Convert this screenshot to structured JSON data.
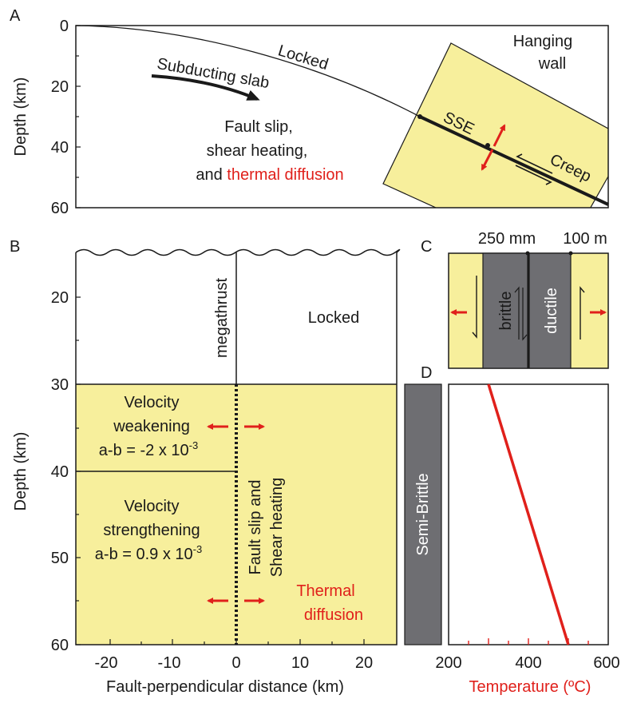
{
  "colors": {
    "yellow": "#f7ef9c",
    "gray": "#6e6e72",
    "red": "#e0201b",
    "ink": "#1a1a1a"
  },
  "panelA": {
    "letter": "A",
    "ylabel": "Depth (km)",
    "yticks": [
      "0",
      "20",
      "40",
      "60"
    ],
    "label_locked": "Locked",
    "label_slab": "Subducting slab",
    "label_hanging_1": "Hanging",
    "label_hanging_2": "wall",
    "label_process_1": "Fault slip,",
    "label_process_2": "shear heating,",
    "label_process_3_pre": "and ",
    "label_process_3_red": "thermal diffusion",
    "label_sse": "SSE",
    "label_creep": "Creep"
  },
  "panelB": {
    "letter": "B",
    "ylabel": "Depth (km)",
    "xlabel": "Fault-perpendicular distance (km)",
    "yticks": [
      "20",
      "30",
      "40",
      "50",
      "60"
    ],
    "xticks": [
      "-20",
      "-10",
      "0",
      "10",
      "20"
    ],
    "label_megathrust": "megathrust",
    "label_locked": "Locked",
    "label_vw_1": "Velocity",
    "label_vw_2": "weakening",
    "label_vw_3": "a-b = -2 x 10",
    "label_vw_exp": "-3",
    "label_vs_1": "Velocity",
    "label_vs_2": "strengthening",
    "label_vs_3": "a-b = 0.9 x 10",
    "label_vs_exp": "-3",
    "label_fault_1": "Fault slip and",
    "label_fault_2": "Shear heating",
    "label_thermal_1": "Thermal",
    "label_thermal_2": "diffusion"
  },
  "panelC": {
    "letter": "C",
    "label_250": "250 mm",
    "label_100": "100 m",
    "label_brittle": "brittle",
    "label_ductile": "ductile"
  },
  "panelD": {
    "letter": "D",
    "label_semibrittle": "Semi-Brittle",
    "xlabel": "Temperature (ºC)",
    "xticks": [
      "200",
      "400",
      "600"
    ]
  },
  "chart_data": {
    "type": "line",
    "xlabel": "Temperature (ºC)",
    "xlim": [
      200,
      600
    ],
    "ylim": [
      30,
      60
    ],
    "series": [
      {
        "x": [
          300,
          500
        ],
        "y": [
          30,
          60
        ]
      }
    ]
  }
}
